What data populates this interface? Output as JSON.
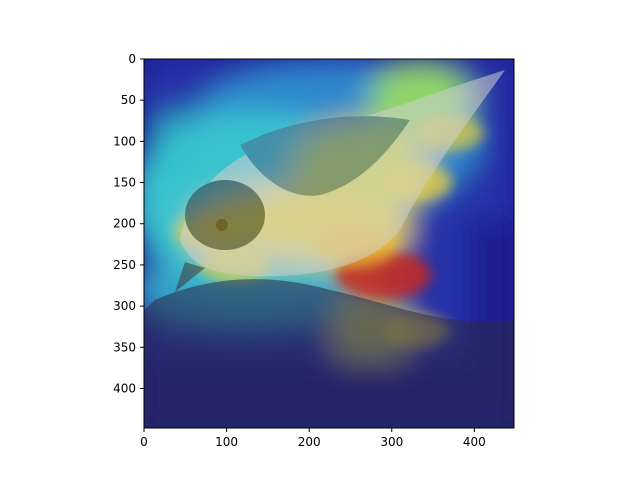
{
  "chart_data": {
    "type": "heatmap",
    "title": "",
    "xlabel": "",
    "ylabel": "",
    "xlim": [
      0,
      448
    ],
    "ylim": [
      448,
      0
    ],
    "x_ticks": [
      0,
      100,
      200,
      300,
      400
    ],
    "y_ticks": [
      0,
      50,
      100,
      150,
      200,
      250,
      300,
      350,
      400
    ],
    "grid": false,
    "colormap": "jet",
    "background_image": "bird-photo",
    "hotspots": [
      {
        "x": 290,
        "y": 262,
        "intensity": 1.0
      },
      {
        "x": 255,
        "y": 225,
        "intensity": 0.75
      },
      {
        "x": 330,
        "y": 150,
        "intensity": 0.6
      },
      {
        "x": 370,
        "y": 90,
        "intensity": 0.55
      },
      {
        "x": 110,
        "y": 250,
        "intensity": 0.55
      },
      {
        "x": 75,
        "y": 210,
        "intensity": 0.45
      },
      {
        "x": 330,
        "y": 330,
        "intensity": 0.5
      }
    ]
  },
  "colors": {
    "background_dark": "#1a1a8c",
    "cool": "#1f3fd1",
    "cyan": "#3ccfd6",
    "yellow": "#f2d433",
    "red": "#c8281c"
  }
}
